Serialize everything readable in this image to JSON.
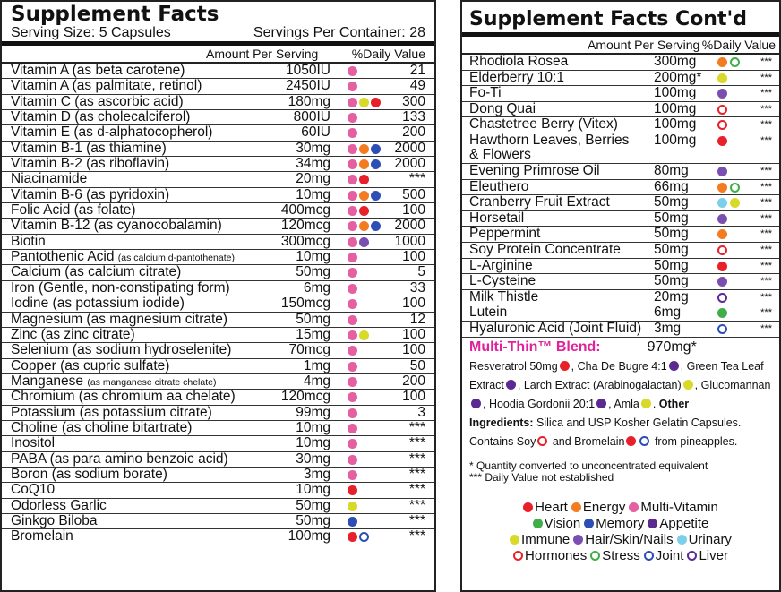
{
  "colors": {
    "heart": "#e8202a",
    "energy": "#f47c20",
    "multi": "#e55fa3",
    "vision": "#3fae49",
    "memory": "#2d4fb5",
    "appetite": "#5b2a90",
    "immune": "#d9d92a",
    "hair": "#7b4fb0",
    "urinary": "#7bcfe8",
    "hormones": "#e8202a",
    "stress": "#3fae49",
    "joint": "#2d4fb5",
    "liver": "#5b2a90"
  },
  "left": {
    "title": "Supplement Facts",
    "serving_size": "Serving Size: 5 Capsules",
    "servings_per": "Servings Per Container: 28",
    "col_amount": "Amount Per Serving",
    "col_dv": "%Daily Value",
    "rows": [
      {
        "name": "Vitamin A (as beta carotene)",
        "amt": "1050IU",
        "dv": "21",
        "dots": [
          "multi"
        ]
      },
      {
        "name": "Vitamin A  (as palmitate, retinol)",
        "amt": "2450IU",
        "dv": "49",
        "dots": [
          "multi"
        ]
      },
      {
        "name": "Vitamin C (as ascorbic acid)",
        "amt": "180mg",
        "dv": "300",
        "dots": [
          "multi",
          "immune",
          "heart"
        ]
      },
      {
        "name": "Vitamin D (as cholecalciferol)",
        "amt": "800IU",
        "dv": "133",
        "dots": [
          "multi"
        ]
      },
      {
        "name": "Vitamin E (as d-alphatocopherol)",
        "amt": "60IU",
        "dv": "200",
        "dots": [
          "multi"
        ]
      },
      {
        "name": "Vitamin B-1 (as thiamine)",
        "amt": "30mg",
        "dv": "2000",
        "dots": [
          "multi",
          "energy",
          "memory"
        ]
      },
      {
        "name": "Vitamin B-2 (as riboflavin)",
        "amt": "34mg",
        "dv": "2000",
        "dots": [
          "multi",
          "energy",
          "memory"
        ]
      },
      {
        "name": "Niacinamide",
        "amt": "20mg",
        "dv": "***",
        "dots": [
          "multi",
          "heart"
        ]
      },
      {
        "name": "Vitamin B-6 (as pyridoxin)",
        "amt": "10mg",
        "dv": "500",
        "dots": [
          "multi",
          "energy",
          "memory"
        ]
      },
      {
        "name": "Folic Acid (as folate)",
        "amt": "400mcg",
        "dv": "100",
        "dots": [
          "multi",
          "heart"
        ]
      },
      {
        "name": "Vitamin B-12 (as cyanocobalamin)",
        "amt": "120mcg",
        "dv": "2000",
        "dots": [
          "multi",
          "energy",
          "memory"
        ]
      },
      {
        "name": "Biotin",
        "amt": "300mcg",
        "dv": "1000",
        "dots": [
          "multi",
          "hair"
        ]
      },
      {
        "name": "Pantothenic Acid",
        "qual": "(as calcium d-pantothenate)",
        "amt": "10mg",
        "dv": "100",
        "dots": [
          "multi"
        ]
      },
      {
        "name": "Calcium (as calcium citrate)",
        "amt": "50mg",
        "dv": "5",
        "dots": [
          "multi"
        ]
      },
      {
        "name": "Iron (Gentle, non-constipating form)",
        "amt": "6mg",
        "dv": "33",
        "dots": [
          "multi"
        ]
      },
      {
        "name": "Iodine (as potassium iodide)",
        "amt": "150mcg",
        "dv": "100",
        "dots": [
          "multi"
        ]
      },
      {
        "name": "Magnesium (as magnesium citrate)",
        "amt": "50mg",
        "dv": "12",
        "dots": [
          "multi"
        ]
      },
      {
        "name": "Zinc (as zinc citrate)",
        "amt": "15mg",
        "dv": "100",
        "dots": [
          "multi",
          "immune"
        ]
      },
      {
        "name": "Selenium (as sodium hydroselenite)",
        "amt": "70mcg",
        "dv": "100",
        "dots": [
          "multi"
        ]
      },
      {
        "name": "Copper (as cupric sulfate)",
        "amt": "1mg",
        "dv": "50",
        "dots": [
          "multi"
        ]
      },
      {
        "name": "Manganese",
        "qual": "(as manganese citrate chelate)",
        "amt": "4mg",
        "dv": "200",
        "dots": [
          "multi"
        ]
      },
      {
        "name": "Chromium (as chromium aa chelate)",
        "amt": "120mcg",
        "dv": "100",
        "dots": [
          "multi"
        ]
      },
      {
        "name": "Potassium (as potassium citrate)",
        "amt": "99mg",
        "dv": "3",
        "dots": [
          "multi"
        ]
      },
      {
        "name": "Choline (as choline bitartrate)",
        "amt": "10mg",
        "dv": "***",
        "dots": [
          "multi"
        ]
      },
      {
        "name": "Inositol",
        "amt": "10mg",
        "dv": "***",
        "dots": [
          "multi"
        ]
      },
      {
        "name": "PABA (as para amino benzoic acid)",
        "amt": "30mg",
        "dv": "***",
        "dots": [
          "multi"
        ]
      },
      {
        "name": "Boron (as sodium borate)",
        "amt": "3mg",
        "dv": "***",
        "dots": [
          "multi"
        ]
      },
      {
        "name": "CoQ10",
        "amt": "10mg",
        "dv": "***",
        "dots": [
          "heart"
        ]
      },
      {
        "name": "Odorless Garlic",
        "amt": "50mg",
        "dv": "***",
        "dots": [
          "immune"
        ]
      },
      {
        "name": "Ginkgo Biloba",
        "amt": "50mg",
        "dv": "***",
        "dots": [
          "memory"
        ]
      },
      {
        "name": "Bromelain",
        "amt": "100mg",
        "dv": "***",
        "dots": [
          "heart",
          "ring:joint"
        ]
      }
    ]
  },
  "right": {
    "title": "Supplement Facts Cont'd",
    "col_amount": "Amount Per Serving",
    "col_dv": "%Daily Value",
    "rows": [
      {
        "name": "Rhodiola Rosea",
        "amt": "300mg",
        "dv": "***",
        "dots": [
          "energy",
          "ring:stress"
        ]
      },
      {
        "name": "Elderberry 10:1",
        "amt": "200mg*",
        "dv": "***",
        "dots": [
          "immune"
        ]
      },
      {
        "name": "Fo-Ti",
        "amt": "100mg",
        "dv": "***",
        "dots": [
          "hair"
        ]
      },
      {
        "name": "Dong Quai",
        "amt": "100mg",
        "dv": "***",
        "dots": [
          "ring:hormones"
        ]
      },
      {
        "name": "Chastetree Berry (Vitex)",
        "amt": "100mg",
        "dv": "***",
        "dots": [
          "ring:hormones"
        ]
      },
      {
        "name": "Hawthorn Leaves, Berries",
        "name2": "& Flowers",
        "amt": "100mg",
        "dv": "***",
        "dots": [
          "heart"
        ]
      },
      {
        "name": "Evening Primrose Oil",
        "amt": "80mg",
        "dv": "***",
        "dots": [
          "hair"
        ]
      },
      {
        "name": "Eleuthero",
        "amt": "66mg",
        "dv": "***",
        "dots": [
          "energy",
          "ring:stress"
        ]
      },
      {
        "name": "Cranberry Fruit Extract",
        "amt": "50mg",
        "dv": "***",
        "dots": [
          "urinary",
          "immune"
        ]
      },
      {
        "name": "Horsetail",
        "amt": "50mg",
        "dv": "***",
        "dots": [
          "hair"
        ]
      },
      {
        "name": "Peppermint",
        "amt": "50mg",
        "dv": "***",
        "dots": [
          "energy"
        ]
      },
      {
        "name": "Soy Protein Concentrate",
        "amt": "50mg",
        "dv": "***",
        "dots": [
          "ring:hormones"
        ]
      },
      {
        "name": "L-Arginine",
        "amt": "50mg",
        "dv": "***",
        "dots": [
          "heart"
        ]
      },
      {
        "name": "L-Cysteine",
        "amt": "50mg",
        "dv": "***",
        "dots": [
          "hair"
        ]
      },
      {
        "name": "Milk Thistle",
        "amt": "20mg",
        "dv": "***",
        "dots": [
          "ring:liver"
        ]
      },
      {
        "name": "Lutein",
        "amt": "6mg",
        "dv": "***",
        "dots": [
          "vision"
        ]
      },
      {
        "name": "Hyaluronic Acid (Joint Fluid)",
        "amt": "3mg",
        "dv": "***",
        "dots": [
          "ring:joint"
        ]
      }
    ],
    "blend_label": "Multi-Thin™ Blend:",
    "blend_amt": "970mg*",
    "blend_items": [
      {
        "text": "Resveratrol 50mg",
        "dot": "heart",
        "sep": ", "
      },
      {
        "text": "Cha De Bugre 4:1",
        "dot": "appetite",
        "sep": ", "
      },
      {
        "text": "Green Tea Leaf Extract",
        "dot": "appetite",
        "sep": ", "
      },
      {
        "text": "Larch Extract (Arabinogalactan)",
        "dot": "immune",
        "sep": ", "
      },
      {
        "text": "Glucomannan",
        "dot": "appetite",
        "sep": ", "
      },
      {
        "text": "Hoodia Gordonii 20:1",
        "dot": "appetite",
        "sep": ", "
      },
      {
        "text": "Amla",
        "dot": "immune",
        "sep": ". "
      }
    ],
    "other_label": "Other",
    "ingredients_label": "Ingredients:",
    "ingredients_text": "Silica and USP Kosher Gelatin Capsules.",
    "contains_prefix": "Contains Soy",
    "contains_mid": "and Bromelain",
    "contains_suffix": "from pineapples.",
    "footnote1": "* Quantity converted to unconcentrated equivalent",
    "footnote2": "*** Daily Value not established",
    "legend": [
      [
        {
          "key": "heart",
          "label": "Heart"
        },
        {
          "key": "energy",
          "label": "Energy"
        },
        {
          "key": "multi",
          "label": "Multi-Vitamin"
        }
      ],
      [
        {
          "key": "vision",
          "label": "Vision"
        },
        {
          "key": "memory",
          "label": "Memory"
        },
        {
          "key": "appetite",
          "label": "Appetite"
        }
      ],
      [
        {
          "key": "immune",
          "label": "Immune"
        },
        {
          "key": "hair",
          "label": "Hair/Skin/Nails"
        },
        {
          "key": "urinary",
          "label": "Urinary"
        }
      ],
      [
        {
          "key": "ring:hormones",
          "label": "Hormones"
        },
        {
          "key": "ring:stress",
          "label": "Stress"
        },
        {
          "key": "ring:joint",
          "label": "Joint"
        },
        {
          "key": "ring:liver",
          "label": "Liver"
        }
      ]
    ]
  }
}
